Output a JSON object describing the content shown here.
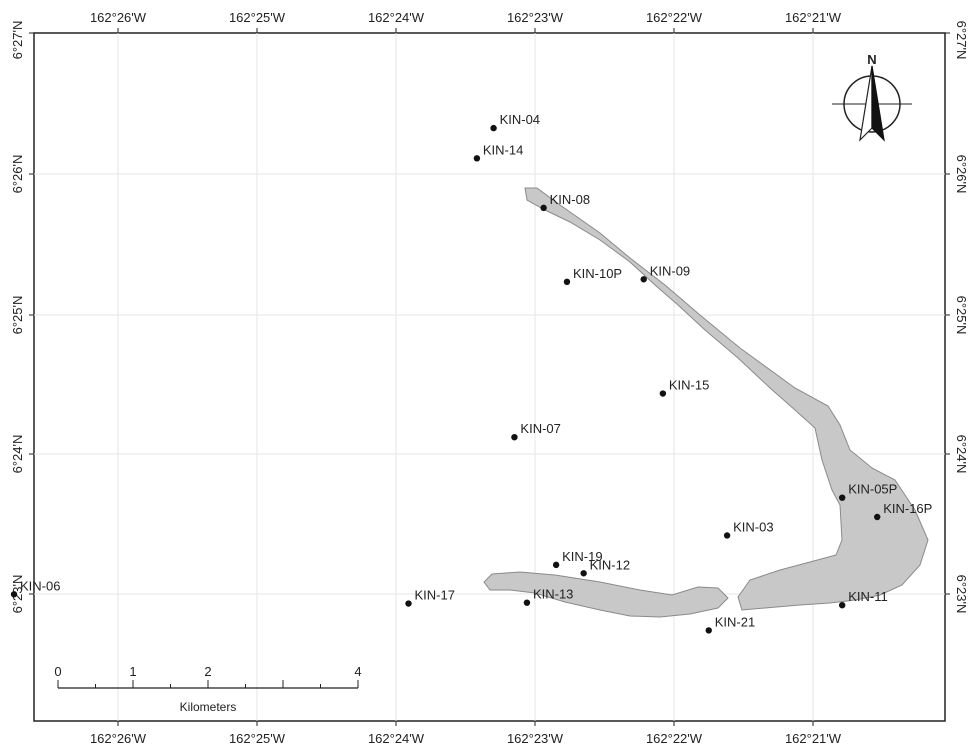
{
  "map": {
    "longitude_labels": [
      "162°26'W",
      "162°25'W",
      "162°24'W",
      "162°23'W",
      "162°22'W",
      "162°21'W"
    ],
    "latitude_labels": [
      "6°27'N",
      "6°26'N",
      "6°25'N",
      "6°24'N",
      "6°23'N"
    ],
    "north_label": "N",
    "scale_bar": {
      "ticks": [
        "0",
        "1",
        "2",
        "4"
      ],
      "unit": "Kilometers"
    },
    "colors": {
      "land": "#c8c8c8",
      "land_outline": "#8a8a8a",
      "grid": "#e6e6e6",
      "frame": "#222222",
      "site": "#111111"
    },
    "sites": [
      {
        "id": "KIN-04",
        "lon": -162.3883,
        "lat": 6.4388
      },
      {
        "id": "KIN-14",
        "lon": -162.3903,
        "lat": 6.4352
      },
      {
        "id": "KIN-08",
        "lon": -162.3823,
        "lat": 6.4293
      },
      {
        "id": "KIN-10P",
        "lon": -162.3795,
        "lat": 6.4205
      },
      {
        "id": "KIN-09",
        "lon": -162.3703,
        "lat": 6.4208
      },
      {
        "id": "KIN-15",
        "lon": -162.368,
        "lat": 6.4072
      },
      {
        "id": "KIN-07",
        "lon": -162.3858,
        "lat": 6.402
      },
      {
        "id": "KIN-05P",
        "lon": -162.3465,
        "lat": 6.3948
      },
      {
        "id": "KIN-16P",
        "lon": -162.3423,
        "lat": 6.3925
      },
      {
        "id": "KIN-03",
        "lon": -162.3603,
        "lat": 6.3903
      },
      {
        "id": "KIN-19",
        "lon": -162.3808,
        "lat": 6.3868
      },
      {
        "id": "KIN-12",
        "lon": -162.3775,
        "lat": 6.3858
      },
      {
        "id": "KIN-06",
        "lon": -162.4458,
        "lat": 6.3833
      },
      {
        "id": "KIN-17",
        "lon": -162.3985,
        "lat": 6.3822
      },
      {
        "id": "KIN-13",
        "lon": -162.3843,
        "lat": 6.3823
      },
      {
        "id": "KIN-11",
        "lon": -162.3465,
        "lat": 6.382
      },
      {
        "id": "KIN-21",
        "lon": -162.3625,
        "lat": 6.379
      }
    ]
  }
}
